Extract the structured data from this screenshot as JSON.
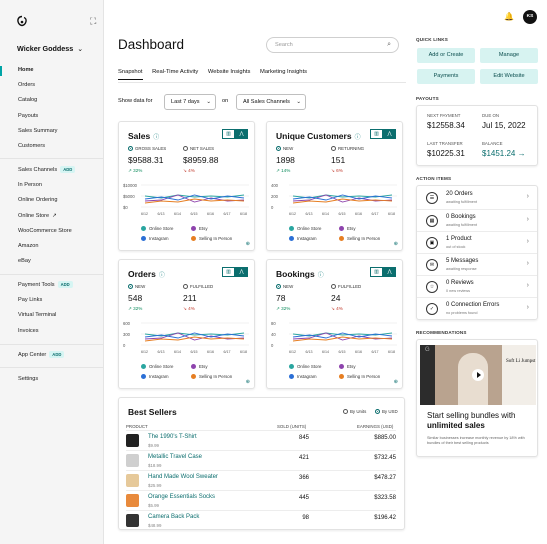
{
  "sidebar": {
    "store_name": "Wicker Goddess",
    "group1": [
      "Home",
      "Orders",
      "Catalog",
      "Payouts",
      "Sales Summary",
      "Customers"
    ],
    "group2": [
      {
        "label": "Sales Channels",
        "badge": "ADD"
      },
      {
        "label": "In Person"
      },
      {
        "label": "Online Ordering"
      },
      {
        "label": "Online Store",
        "ext": "↗"
      },
      {
        "label": "WooCommerce Store"
      },
      {
        "label": "Amazon"
      },
      {
        "label": "eBay"
      }
    ],
    "group3": [
      {
        "label": "Payment Tools",
        "badge": "ADD"
      },
      {
        "label": "Pay Links"
      },
      {
        "label": "Virtual Terminal"
      },
      {
        "label": "Invoices"
      }
    ],
    "group4": [
      {
        "label": "App Center",
        "badge": "ADD"
      }
    ],
    "settings": "Settings"
  },
  "header": {
    "avatar": "KS"
  },
  "page": {
    "title": "Dashboard",
    "search_placeholder": "Search",
    "tabs": [
      "Snapshot",
      "Real-Time Activity",
      "Website Insights",
      "Marketing Insights"
    ],
    "filter": {
      "label": "Show data for",
      "range": "Last 7 days",
      "on": "on",
      "channel": "All Sales Channels"
    }
  },
  "cards": {
    "sales": {
      "title": "Sales",
      "r1": "GROSS SALES",
      "r2": "NET SALES",
      "v1": "$9588.31",
      "v2": "$8959.88",
      "p1": "32%",
      "p2": "4%",
      "y": [
        "$10000",
        "$5000",
        "$0"
      ],
      "legend": [
        "Online Store",
        "Etsy",
        "Instagram",
        "Selling In Person"
      ]
    },
    "customers": {
      "title": "Unique Customers",
      "r1": "NEW",
      "r2": "RETURNING",
      "v1": "1898",
      "v2": "151",
      "p1": "14%",
      "p2": "6%",
      "y": [
        "400",
        "200",
        "0"
      ],
      "legend": [
        "Online Store",
        "Etsy",
        "Instagram",
        "Selling In Person"
      ]
    },
    "orders": {
      "title": "Orders",
      "r1": "NEW",
      "r2": "FULFILLED",
      "v1": "548",
      "v2": "211",
      "p1": "32%",
      "p2": "4%",
      "y": [
        "600",
        "300",
        "0"
      ],
      "legend": [
        "Online Store",
        "Etsy",
        "Instagram",
        "Selling In Person"
      ]
    },
    "bookings": {
      "title": "Bookings",
      "r1": "NEW",
      "r2": "FULFILLED",
      "v1": "78",
      "v2": "24",
      "p1": "32%",
      "p2": "4%",
      "y": [
        "80",
        "40",
        "0"
      ],
      "legend": [
        "Online Store",
        "Etsy",
        "Instagram",
        "Selling In Person"
      ]
    },
    "xticks": [
      "6/12",
      "6/13",
      "6/14",
      "6/15",
      "6/16",
      "6/17",
      "6/18"
    ]
  },
  "best_sellers": {
    "title": "Best Sellers",
    "by_units": "By Units",
    "by_usd": "By USD",
    "col_product": "PRODUCT",
    "col_sold": "SOLD (UNITS)",
    "col_earn": "EARNINGS (USD)",
    "rows": [
      {
        "name": "The 1990's T-Shirt",
        "price": "$9.99",
        "sold": "845",
        "earn": "$885.00"
      },
      {
        "name": "Metallic Travel Case",
        "price": "$18.99",
        "sold": "421",
        "earn": "$732.45"
      },
      {
        "name": "Hand Made Wool Sweater",
        "price": "$25.99",
        "sold": "366",
        "earn": "$478.27"
      },
      {
        "name": "Orange Essentials Socks",
        "price": "$5.99",
        "sold": "445",
        "earn": "$323.58"
      },
      {
        "name": "Camera Back Pack",
        "price": "$48.99",
        "sold": "98",
        "earn": "$196.42"
      }
    ]
  },
  "right": {
    "quick_links": "QUICK LINKS",
    "buttons": [
      "Add or Create",
      "Manage",
      "Payments",
      "Edit Website"
    ],
    "payouts": "PAYOUTS",
    "next_label": "NEXT PAYMENT",
    "next_val": "$12558.34",
    "due_label": "DUE ON",
    "due_val": "Jul 15, 2022",
    "last_label": "LAST TRANSFER",
    "last_val": "$10225.31",
    "bal_label": "BALANCE",
    "bal_val": "$1451.24 →",
    "action_items": "ACTION ITEMS",
    "actions": [
      {
        "t": "20 Orders",
        "s": "awaiting fulfillment"
      },
      {
        "t": "0 Bookings",
        "s": "awaiting fulfillment"
      },
      {
        "t": "1 Product",
        "s": "out of stock"
      },
      {
        "t": "5 Messages",
        "s": "awaiting response"
      },
      {
        "t": "0 Reviews",
        "s": "0 new reviews"
      },
      {
        "t": "0 Connection Errors",
        "s": "no problems found"
      }
    ],
    "recommendations": "RECOMMENDATIONS",
    "rec_title": "Start selling bundles with",
    "rec_bold": "unlimited sales",
    "rec_body": "Similar businesses increase monthly revenue by 18% with bundles of their best selling products",
    "rec_video": "Soft Li Jumpst"
  }
}
